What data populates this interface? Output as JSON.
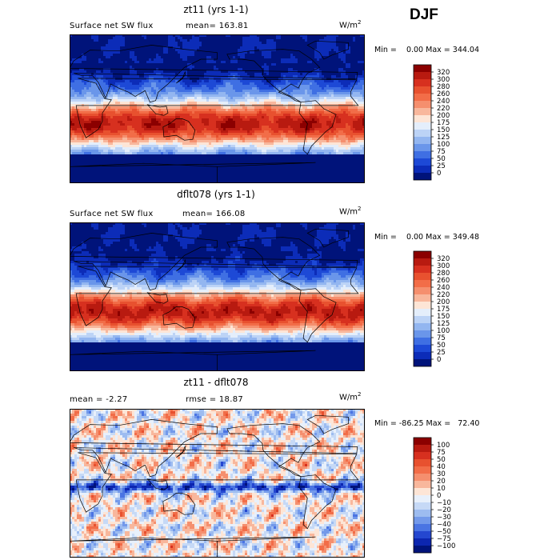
{
  "season": "DJF",
  "chart_data": [
    {
      "type": "heatmap",
      "title": "zt11 (yrs 1-1)",
      "variable": "Surface net SW flux",
      "stat_label": "mean=",
      "stat_value": "163.81",
      "units_base": "W/m",
      "units_exp": "2",
      "min_label": "Min =",
      "min_value": "0.00",
      "max_label": "Max =",
      "max_value": "344.04",
      "colorbar_levels": [
        "320",
        "300",
        "280",
        "260",
        "240",
        "220",
        "200",
        "175",
        "150",
        "125",
        "100",
        "75",
        "50",
        "25",
        "0"
      ],
      "colorbar_colors": [
        "#8b0000",
        "#b81a10",
        "#d7301f",
        "#e8512f",
        "#f26d48",
        "#f58f6e",
        "#f8b79c",
        "#fde5d6",
        "#e4eefb",
        "#bcd3f6",
        "#93b6f0",
        "#6a96ea",
        "#3f6fe3",
        "#1d49d6",
        "#0c2cb8",
        "#00137a"
      ],
      "description_kind": "sw_flux"
    },
    {
      "type": "heatmap",
      "title": "dflt078 (yrs 1-1)",
      "variable": "Surface net SW flux",
      "stat_label": "mean=",
      "stat_value": "166.08",
      "units_base": "W/m",
      "units_exp": "2",
      "min_label": "Min =",
      "min_value": "0.00",
      "max_label": "Max =",
      "max_value": "349.48",
      "colorbar_levels": [
        "320",
        "300",
        "280",
        "260",
        "240",
        "220",
        "200",
        "175",
        "150",
        "125",
        "100",
        "75",
        "50",
        "25",
        "0"
      ],
      "colorbar_colors": [
        "#8b0000",
        "#b81a10",
        "#d7301f",
        "#e8512f",
        "#f26d48",
        "#f58f6e",
        "#f8b79c",
        "#fde5d6",
        "#e4eefb",
        "#bcd3f6",
        "#93b6f0",
        "#6a96ea",
        "#3f6fe3",
        "#1d49d6",
        "#0c2cb8",
        "#00137a"
      ],
      "description_kind": "sw_flux"
    },
    {
      "type": "heatmap",
      "title": "zt11 - dflt078",
      "stat_label": "mean =",
      "stat_value": "-2.27",
      "stat2_label": "rmse =",
      "stat2_value": "18.87",
      "units_base": "W/m",
      "units_exp": "2",
      "min_label": "Min =",
      "min_value": "-86.25",
      "max_label": "Max =",
      "max_value": "72.40",
      "colorbar_levels": [
        "100",
        "75",
        "50",
        "40",
        "30",
        "20",
        "10",
        "0",
        "−10",
        "−20",
        "−30",
        "−40",
        "−50",
        "−75",
        "−100"
      ],
      "colorbar_colors": [
        "#8b0000",
        "#b81a10",
        "#d7301f",
        "#e8512f",
        "#f26d48",
        "#f58f6e",
        "#f8b79c",
        "#fde5d6",
        "#e8f0fb",
        "#c6d9f6",
        "#9dbcf0",
        "#7399ea",
        "#4a74e3",
        "#2447d0",
        "#0c26b0",
        "#00137a"
      ],
      "description_kind": "difference"
    }
  ]
}
